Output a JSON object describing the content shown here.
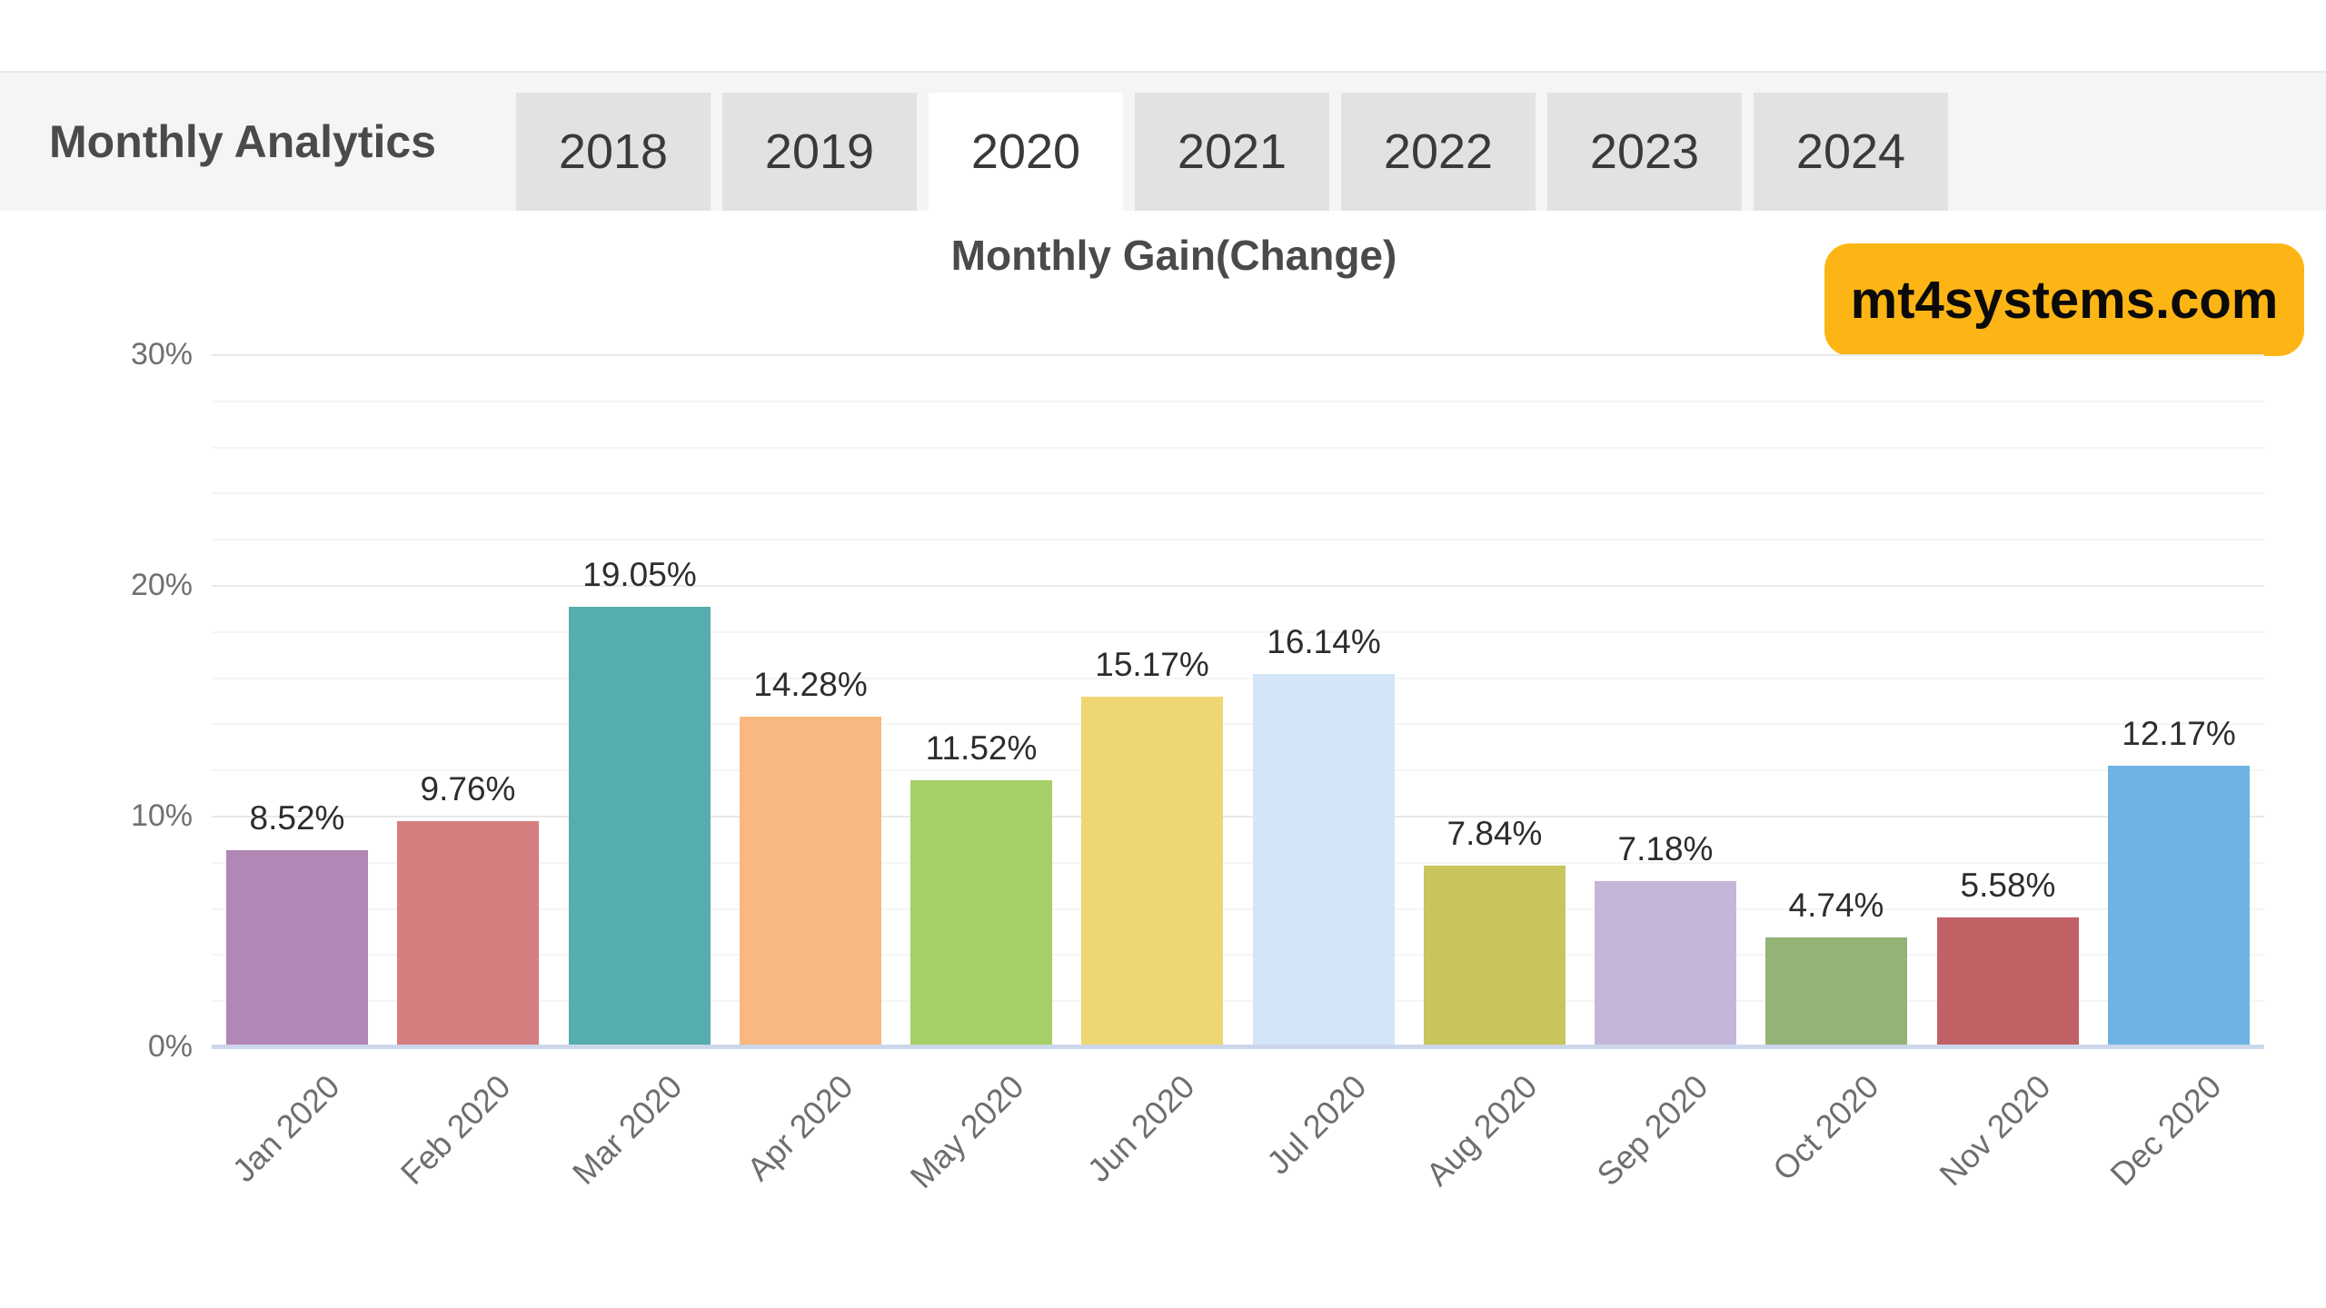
{
  "header": {
    "title": "Monthly Analytics",
    "tabs": [
      {
        "label": "2018",
        "active": false
      },
      {
        "label": "2019",
        "active": false
      },
      {
        "label": "2020",
        "active": true
      },
      {
        "label": "2021",
        "active": false
      },
      {
        "label": "2022",
        "active": false
      },
      {
        "label": "2023",
        "active": false
      },
      {
        "label": "2024",
        "active": false
      }
    ]
  },
  "watermark": {
    "label": "mt4systems.com",
    "background": "#fdb515",
    "text_color": "#0a0a0a"
  },
  "chart_data": {
    "type": "bar",
    "title": "Monthly Gain(Change)",
    "categories": [
      "Jan 2020",
      "Feb 2020",
      "Mar 2020",
      "Apr 2020",
      "May 2020",
      "Jun 2020",
      "Jul 2020",
      "Aug 2020",
      "Sep 2020",
      "Oct 2020",
      "Nov 2020",
      "Dec 2020"
    ],
    "values": [
      8.52,
      9.76,
      19.05,
      14.28,
      11.52,
      15.17,
      16.14,
      7.84,
      7.18,
      4.74,
      5.58,
      12.17
    ],
    "value_labels": [
      "8.52%",
      "9.76%",
      "19.05%",
      "14.28%",
      "11.52%",
      "15.17%",
      "16.14%",
      "7.84%",
      "7.18%",
      "4.74%",
      "5.58%",
      "12.17%"
    ],
    "bar_colors": [
      "#b286b5",
      "#d57e80",
      "#56adad",
      "#f8b880",
      "#a6cf67",
      "#eed672",
      "#d3e5f6",
      "#c8c55c",
      "#c4b6d8",
      "#94b377",
      "#c06265",
      "#6fb3e4"
    ],
    "xlabel": "",
    "ylabel": "",
    "ylim": [
      0,
      30
    ],
    "y_ticks": [
      {
        "label": "0%",
        "value": 0
      },
      {
        "label": "10%",
        "value": 10
      },
      {
        "label": "20%",
        "value": 20
      },
      {
        "label": "30%",
        "value": 30
      }
    ],
    "y_minor_step": 2,
    "grid": true,
    "legend_position": "none",
    "axis_line_color": "#ccd7ec",
    "x_label_rotation_deg": -45
  }
}
